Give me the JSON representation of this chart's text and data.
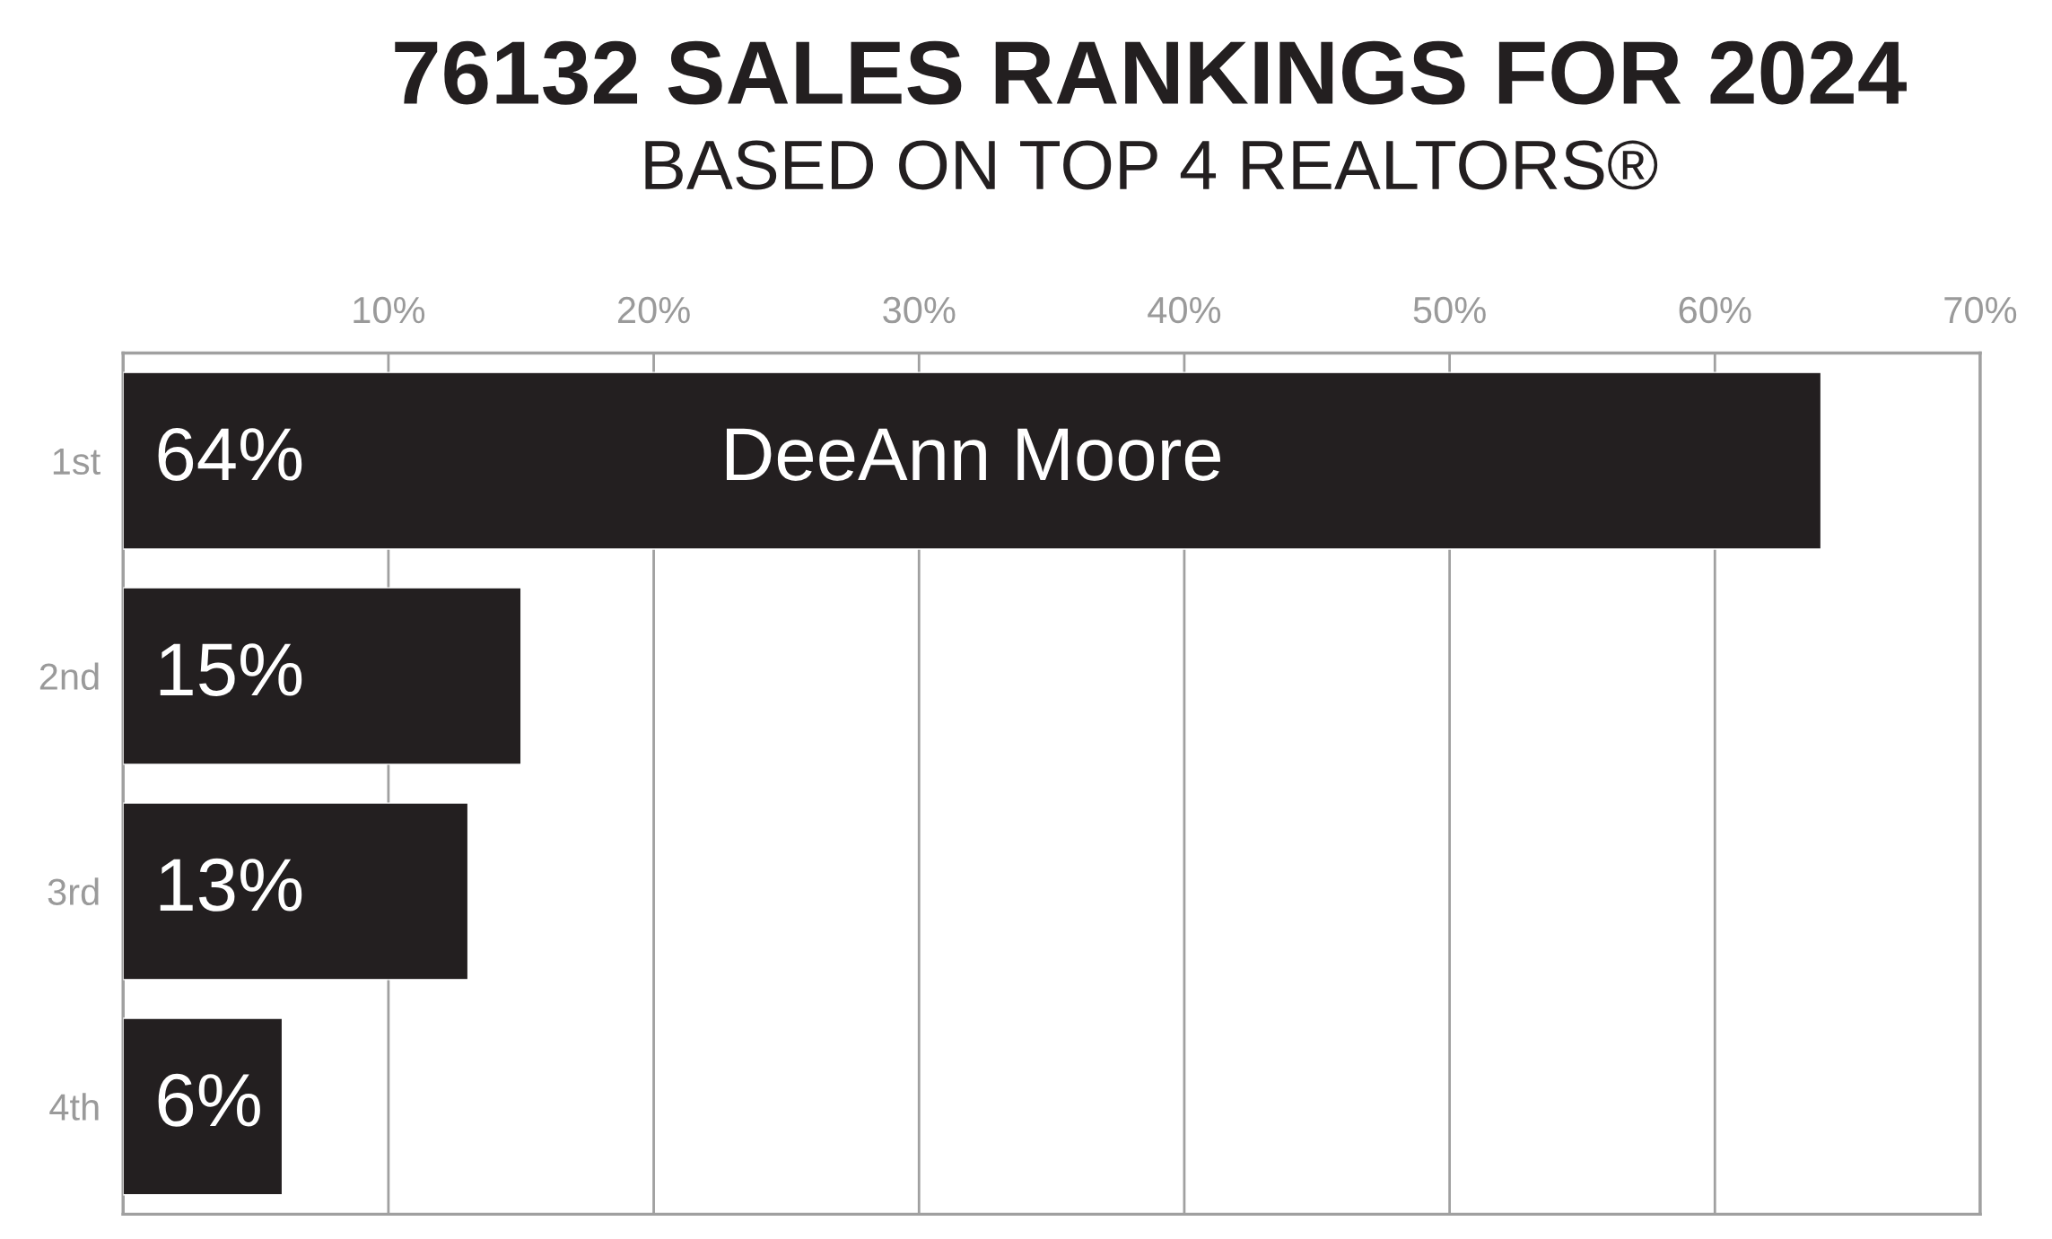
{
  "chart_data": {
    "type": "bar",
    "orientation": "horizontal",
    "title": "76132 SALES RANKINGS FOR 2024",
    "subtitle": "BASED ON TOP 4 REALTORS®",
    "categories": [
      "1st",
      "2nd",
      "3rd",
      "4th"
    ],
    "values": [
      64,
      15,
      13,
      6
    ],
    "value_labels": [
      "64%",
      "15%",
      "13%",
      "6%"
    ],
    "color": "#231f20",
    "xlim": [
      0,
      70
    ],
    "xticks": [
      {
        "value": 10,
        "label": "10%"
      },
      {
        "value": 20,
        "label": "20%"
      },
      {
        "value": 30,
        "label": "30%"
      },
      {
        "value": 40,
        "label": "40%"
      },
      {
        "value": 50,
        "label": "50%"
      },
      {
        "value": 60,
        "label": "60%"
      },
      {
        "value": 70,
        "label": "70%"
      }
    ],
    "annotations": [
      {
        "text": "DeeAnn Moore",
        "x": 32,
        "y": "1st"
      }
    ],
    "grid": "x"
  }
}
